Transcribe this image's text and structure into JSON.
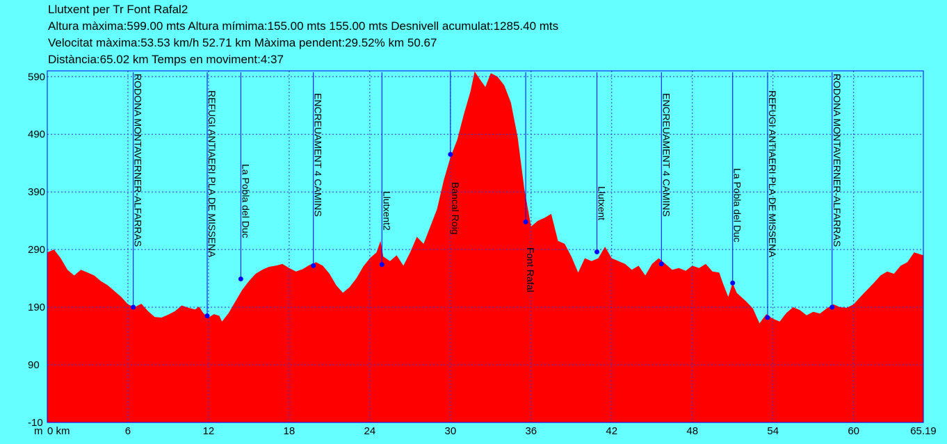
{
  "header": {
    "line1": "Llutxent per Tr Font Rafal2",
    "line2": "Altura màxima:599.00 mts Altura mímima:155.00 mts 155.00 mts Desnivell acumulat:1285.40 mts",
    "line3": "Velocitat màxima:53.53 km/h 52.71 km Màxima pendent:29.52% km 50.67",
    "line4": "Distància:65.02 km Temps en moviment:4:37"
  },
  "colors": {
    "background": "#66ffff",
    "fill": "#ff0000",
    "frame": "#0000ff",
    "grid": "#3333cc",
    "marker": "#0000ff",
    "text": "#000000"
  },
  "chart_data": {
    "type": "area",
    "xlabel": "",
    "ylabel": "",
    "xlim": [
      0,
      65.19
    ],
    "ylim": [
      -10,
      600
    ],
    "x_axis_prefix": "m",
    "x_ticks": [
      {
        "value": 0,
        "label": "0 km"
      },
      {
        "value": 6,
        "label": "6"
      },
      {
        "value": 12,
        "label": "12"
      },
      {
        "value": 18,
        "label": "18"
      },
      {
        "value": 24,
        "label": "24"
      },
      {
        "value": 30,
        "label": "30"
      },
      {
        "value": 36,
        "label": "36"
      },
      {
        "value": 42,
        "label": "42"
      },
      {
        "value": 48,
        "label": "48"
      },
      {
        "value": 54,
        "label": "54"
      },
      {
        "value": 60,
        "label": "60"
      },
      {
        "value": 65.19,
        "label": "65.19"
      }
    ],
    "y_ticks": [
      {
        "value": 590,
        "label": "590"
      },
      {
        "value": 490,
        "label": "490"
      },
      {
        "value": 390,
        "label": "390"
      },
      {
        "value": 290,
        "label": "290"
      },
      {
        "value": 190,
        "label": "190"
      },
      {
        "value": 90,
        "label": "90"
      },
      {
        "value": -10,
        "label": "-10"
      }
    ],
    "grid": true,
    "profile": [
      [
        0,
        285
      ],
      [
        0.5,
        290
      ],
      [
        1,
        275
      ],
      [
        1.5,
        255
      ],
      [
        2,
        245
      ],
      [
        2.5,
        255
      ],
      [
        3,
        250
      ],
      [
        3.5,
        245
      ],
      [
        4,
        235
      ],
      [
        4.5,
        228
      ],
      [
        5,
        218
      ],
      [
        5.5,
        208
      ],
      [
        6,
        195
      ],
      [
        6.5,
        190
      ],
      [
        7,
        196
      ],
      [
        7.5,
        183
      ],
      [
        8,
        173
      ],
      [
        8.5,
        172
      ],
      [
        9,
        177
      ],
      [
        9.5,
        183
      ],
      [
        10,
        193
      ],
      [
        10.5,
        189
      ],
      [
        11,
        186
      ],
      [
        11.3,
        191
      ],
      [
        11.6,
        180
      ],
      [
        12,
        172
      ],
      [
        12.4,
        178
      ],
      [
        12.8,
        175
      ],
      [
        13,
        165
      ],
      [
        13.5,
        180
      ],
      [
        14,
        200
      ],
      [
        14.5,
        220
      ],
      [
        15,
        235
      ],
      [
        15.5,
        248
      ],
      [
        16,
        255
      ],
      [
        16.5,
        260
      ],
      [
        17,
        262
      ],
      [
        17.5,
        265
      ],
      [
        18,
        258
      ],
      [
        18.5,
        252
      ],
      [
        19,
        256
      ],
      [
        19.5,
        263
      ],
      [
        20,
        268
      ],
      [
        20.5,
        262
      ],
      [
        21,
        248
      ],
      [
        21.5,
        228
      ],
      [
        22,
        215
      ],
      [
        22.5,
        225
      ],
      [
        23,
        240
      ],
      [
        23.5,
        260
      ],
      [
        24,
        275
      ],
      [
        24.5,
        285
      ],
      [
        24.8,
        305
      ],
      [
        25,
        278
      ],
      [
        25.5,
        270
      ],
      [
        26,
        280
      ],
      [
        26.5,
        262
      ],
      [
        27,
        285
      ],
      [
        27.5,
        312
      ],
      [
        28,
        300
      ],
      [
        28.5,
        330
      ],
      [
        29,
        360
      ],
      [
        29.5,
        410
      ],
      [
        30,
        450
      ],
      [
        30.5,
        480
      ],
      [
        31,
        525
      ],
      [
        31.5,
        565
      ],
      [
        31.8,
        599
      ],
      [
        32.2,
        585
      ],
      [
        32.6,
        572
      ],
      [
        33,
        596
      ],
      [
        33.5,
        590
      ],
      [
        34,
        575
      ],
      [
        34.5,
        545
      ],
      [
        35,
        485
      ],
      [
        35.5,
        395
      ],
      [
        36,
        330
      ],
      [
        36.5,
        340
      ],
      [
        37,
        345
      ],
      [
        37.5,
        352
      ],
      [
        38,
        305
      ],
      [
        38.5,
        300
      ],
      [
        39,
        278
      ],
      [
        39.5,
        250
      ],
      [
        40,
        275
      ],
      [
        40.5,
        270
      ],
      [
        41,
        275
      ],
      [
        41.5,
        295
      ],
      [
        42,
        275
      ],
      [
        42.5,
        270
      ],
      [
        43,
        265
      ],
      [
        43.5,
        255
      ],
      [
        44,
        262
      ],
      [
        44.5,
        245
      ],
      [
        45,
        265
      ],
      [
        45.5,
        275
      ],
      [
        46,
        265
      ],
      [
        46.5,
        255
      ],
      [
        47,
        258
      ],
      [
        47.5,
        253
      ],
      [
        48,
        262
      ],
      [
        48.5,
        258
      ],
      [
        49,
        265
      ],
      [
        49.5,
        252
      ],
      [
        50,
        250
      ],
      [
        50.3,
        230
      ],
      [
        50.67,
        208
      ],
      [
        51,
        232
      ],
      [
        51.3,
        215
      ],
      [
        52,
        200
      ],
      [
        52.5,
        188
      ],
      [
        53,
        162
      ],
      [
        53.5,
        178
      ],
      [
        54,
        170
      ],
      [
        54.5,
        165
      ],
      [
        55,
        180
      ],
      [
        55.5,
        190
      ],
      [
        56,
        185
      ],
      [
        56.5,
        176
      ],
      [
        57,
        182
      ],
      [
        57.5,
        179
      ],
      [
        58,
        188
      ],
      [
        58.5,
        195
      ],
      [
        59,
        190
      ],
      [
        59.5,
        189
      ],
      [
        60,
        195
      ],
      [
        60.5,
        208
      ],
      [
        61,
        220
      ],
      [
        61.5,
        232
      ],
      [
        62,
        245
      ],
      [
        62.5,
        252
      ],
      [
        63,
        248
      ],
      [
        63.5,
        262
      ],
      [
        64,
        268
      ],
      [
        64.5,
        285
      ],
      [
        65.19,
        280
      ]
    ],
    "waypoints": [
      {
        "x": 6.4,
        "y": 190,
        "label": "RODONA MONTAVERNER-ALFARRAS"
      },
      {
        "x": 11.9,
        "y": 175,
        "label": "REFUGI ANTIAERI PLA DE MISSENA"
      },
      {
        "x": 14.4,
        "y": 239,
        "label": "La Pobla del Duc"
      },
      {
        "x": 19.8,
        "y": 262,
        "label": "ENCREUAMENT 4 CAMINS"
      },
      {
        "x": 24.9,
        "y": 264,
        "label": "Llutxent2"
      },
      {
        "x": 30.0,
        "y": 455,
        "label": "Bancal Roig"
      },
      {
        "x": 35.6,
        "y": 338,
        "label": "Font Rafal"
      },
      {
        "x": 40.9,
        "y": 286,
        "label": "Llutxent"
      },
      {
        "x": 45.7,
        "y": 265,
        "label": "ENCREUAMENT 4 CAMINS"
      },
      {
        "x": 51.0,
        "y": 232,
        "label": "La Pobla del Duc"
      },
      {
        "x": 53.6,
        "y": 172,
        "label": "REFUGI ANTIAERI PLA DE MISSENA"
      },
      {
        "x": 58.4,
        "y": 190,
        "label": "RODONA MONTAVERNER-ALFARRAS"
      }
    ]
  }
}
